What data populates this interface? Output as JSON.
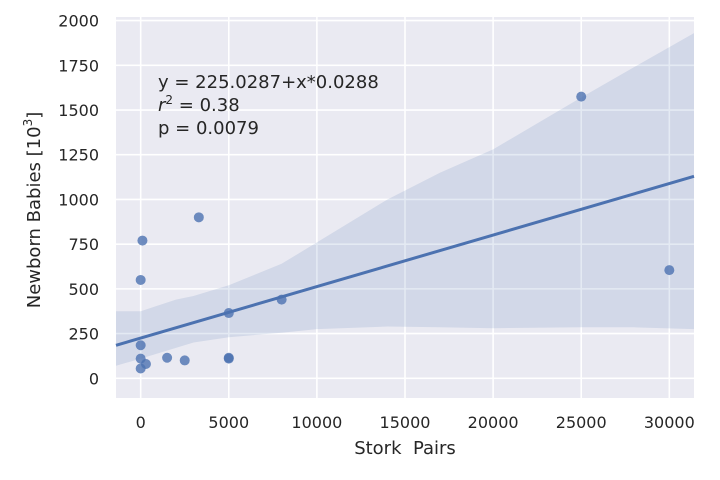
{
  "chart_data": {
    "type": "scatter",
    "xlabel": "Stork  Pairs",
    "ylabel_base": "Newborn Babies [10",
    "ylabel_exp": "3",
    "ylabel_close": "]",
    "xlim": [
      -1400,
      31400
    ],
    "ylim": [
      -110,
      2020
    ],
    "xticks": [
      0,
      5000,
      10000,
      15000,
      20000,
      25000,
      30000
    ],
    "yticks": [
      0,
      250,
      500,
      750,
      1000,
      1250,
      1500,
      1750,
      2000
    ],
    "grid": true,
    "colors": {
      "point": "#4c72b0",
      "line": "#4c72b0",
      "band": "#4c72b0",
      "background": "#eaeaf2"
    },
    "annotation": {
      "equation": "y = 225.0287+x*0.0288",
      "r2_label": "r",
      "r2_exp": "2",
      "r2_value": " = 0.38",
      "p": "p = 0.0079"
    },
    "regression": {
      "intercept": 225.0287,
      "slope": 0.0288
    },
    "confidence_band": {
      "x": [
        -1400,
        0,
        2000,
        3000,
        5000,
        8000,
        10000,
        14000,
        17000,
        20000,
        25000,
        28000,
        31400
      ],
      "lower": [
        70,
        110,
        170,
        200,
        230,
        255,
        275,
        290,
        285,
        280,
        285,
        285,
        275
      ],
      "upper": [
        375,
        375,
        440,
        460,
        520,
        640,
        760,
        1000,
        1150,
        1280,
        1570,
        1740,
        1930
      ]
    },
    "points": [
      {
        "x": 0,
        "y": 550
      },
      {
        "x": 100,
        "y": 770
      },
      {
        "x": 0,
        "y": 185
      },
      {
        "x": 0,
        "y": 110
      },
      {
        "x": 300,
        "y": 80
      },
      {
        "x": 0,
        "y": 55
      },
      {
        "x": 1500,
        "y": 115
      },
      {
        "x": 2500,
        "y": 100
      },
      {
        "x": 3300,
        "y": 900
      },
      {
        "x": 5000,
        "y": 365
      },
      {
        "x": 5000,
        "y": 110
      },
      {
        "x": 5000,
        "y": 115
      },
      {
        "x": 8000,
        "y": 440
      },
      {
        "x": 25000,
        "y": 1575
      },
      {
        "x": 30000,
        "y": 605
      }
    ]
  }
}
